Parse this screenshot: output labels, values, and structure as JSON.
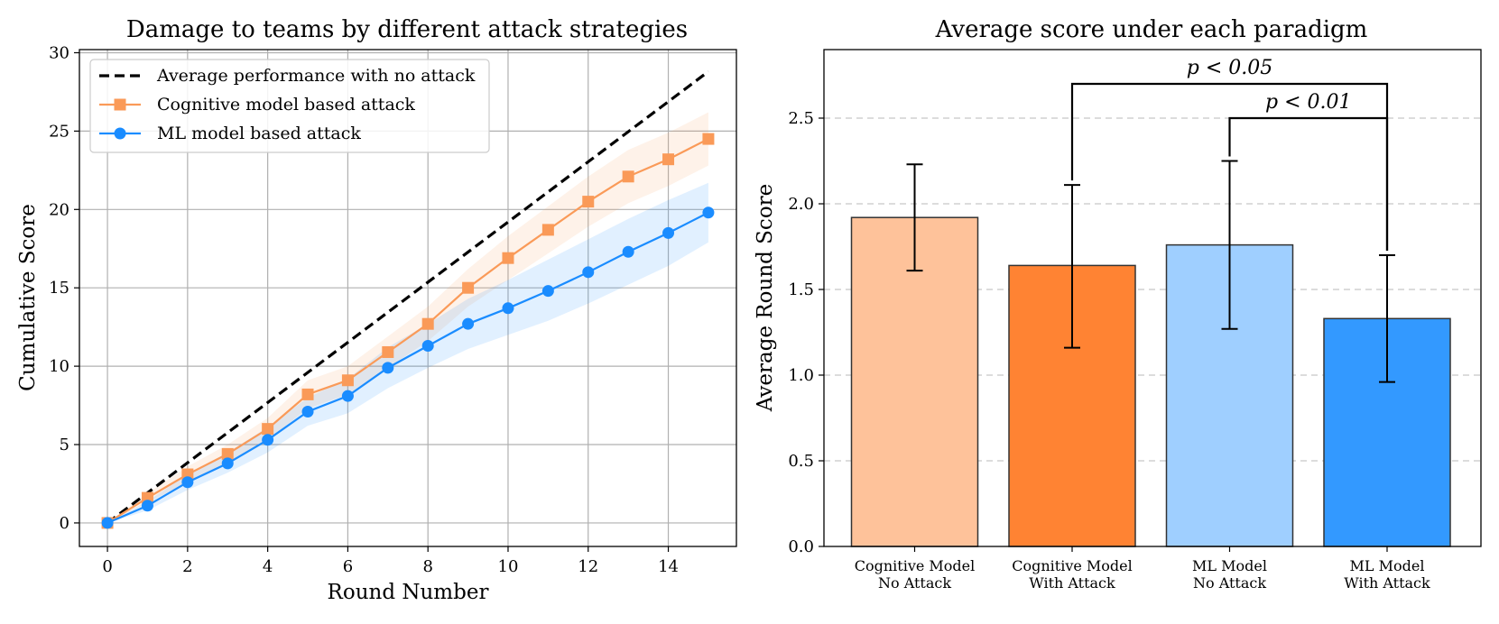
{
  "chart_data": [
    {
      "type": "line",
      "title": "Damage to teams by different attack strategies",
      "xlabel": "Round Number",
      "ylabel": "Cumulative Score",
      "xlim": [
        -0.7,
        15.7
      ],
      "ylim": [
        -1.5,
        30.2
      ],
      "xticks": [
        0,
        2,
        4,
        6,
        8,
        10,
        12,
        14
      ],
      "yticks": [
        0,
        5,
        10,
        15,
        20,
        25,
        30
      ],
      "grid": true,
      "legend_position": "top-left",
      "x": [
        0,
        1,
        2,
        3,
        4,
        5,
        6,
        7,
        8,
        9,
        10,
        11,
        12,
        13,
        14,
        15
      ],
      "series": [
        {
          "name": "Average performance with no attack",
          "color": "#000000",
          "style": "dashed",
          "x": [
            0,
            15
          ],
          "values": [
            0,
            28.8
          ]
        },
        {
          "name": "Cognitive model based attack",
          "color": "#fa9a58",
          "marker": "square",
          "values": [
            0,
            1.6,
            3.1,
            4.4,
            6.0,
            8.2,
            9.1,
            10.9,
            12.7,
            15.0,
            16.9,
            18.7,
            20.5,
            22.1,
            23.2,
            24.5
          ],
          "band_lower": [
            0,
            1.3,
            2.6,
            3.8,
            5.3,
            7.3,
            8.2,
            9.9,
            11.6,
            13.8,
            15.5,
            17.2,
            18.9,
            20.4,
            21.5,
            22.8
          ],
          "band_upper": [
            0,
            1.9,
            3.6,
            5.0,
            6.7,
            9.1,
            10.0,
            11.9,
            13.8,
            16.2,
            18.3,
            20.2,
            22.1,
            23.8,
            24.9,
            26.2
          ]
        },
        {
          "name": "ML model based attack",
          "color": "#1a8cff",
          "marker": "circle",
          "values": [
            0,
            1.1,
            2.6,
            3.8,
            5.3,
            7.1,
            8.1,
            9.9,
            11.3,
            12.7,
            13.7,
            14.8,
            16.0,
            17.3,
            18.5,
            19.8
          ],
          "band_lower": [
            0,
            0.8,
            2.1,
            3.2,
            4.5,
            6.2,
            7.0,
            8.6,
            9.9,
            11.1,
            12.0,
            12.9,
            14.0,
            15.2,
            16.4,
            17.9
          ],
          "band_upper": [
            0,
            1.4,
            3.1,
            4.5,
            6.1,
            8.0,
            9.2,
            11.2,
            12.7,
            14.3,
            15.5,
            16.8,
            18.1,
            19.4,
            20.6,
            21.7
          ]
        }
      ]
    },
    {
      "type": "bar",
      "title": "Average score under each paradigm",
      "xlabel": "",
      "ylabel": "Average Round Score",
      "ylim": [
        0,
        2.9
      ],
      "yticks": [
        "0.0",
        "0.5",
        "1.0",
        "1.5",
        "2.0",
        "2.5"
      ],
      "ytick_values": [
        0,
        0.5,
        1.0,
        1.5,
        2.0,
        2.5
      ],
      "grid": "horizontal-dashed",
      "categories": [
        {
          "line1": "Cognitive Model",
          "line2": "No Attack"
        },
        {
          "line1": "Cognitive Model",
          "line2": "With Attack"
        },
        {
          "line1": "ML Model",
          "line2": "No Attack"
        },
        {
          "line1": "ML Model",
          "line2": "With Attack"
        }
      ],
      "values": [
        1.92,
        1.64,
        1.76,
        1.33
      ],
      "error_low": [
        1.61,
        1.16,
        1.27,
        0.96
      ],
      "error_high": [
        2.23,
        2.11,
        2.25,
        1.7
      ],
      "colors": [
        "#fec29a",
        "#ff8333",
        "#9fcfff",
        "#3399ff"
      ],
      "annotations": [
        {
          "text": "p < 0.05",
          "from_bar": 1,
          "to_bar": 3,
          "level": 2.7
        },
        {
          "text": "p < 0.01",
          "from_bar": 2,
          "to_bar": 3,
          "level": 2.5
        }
      ]
    }
  ]
}
